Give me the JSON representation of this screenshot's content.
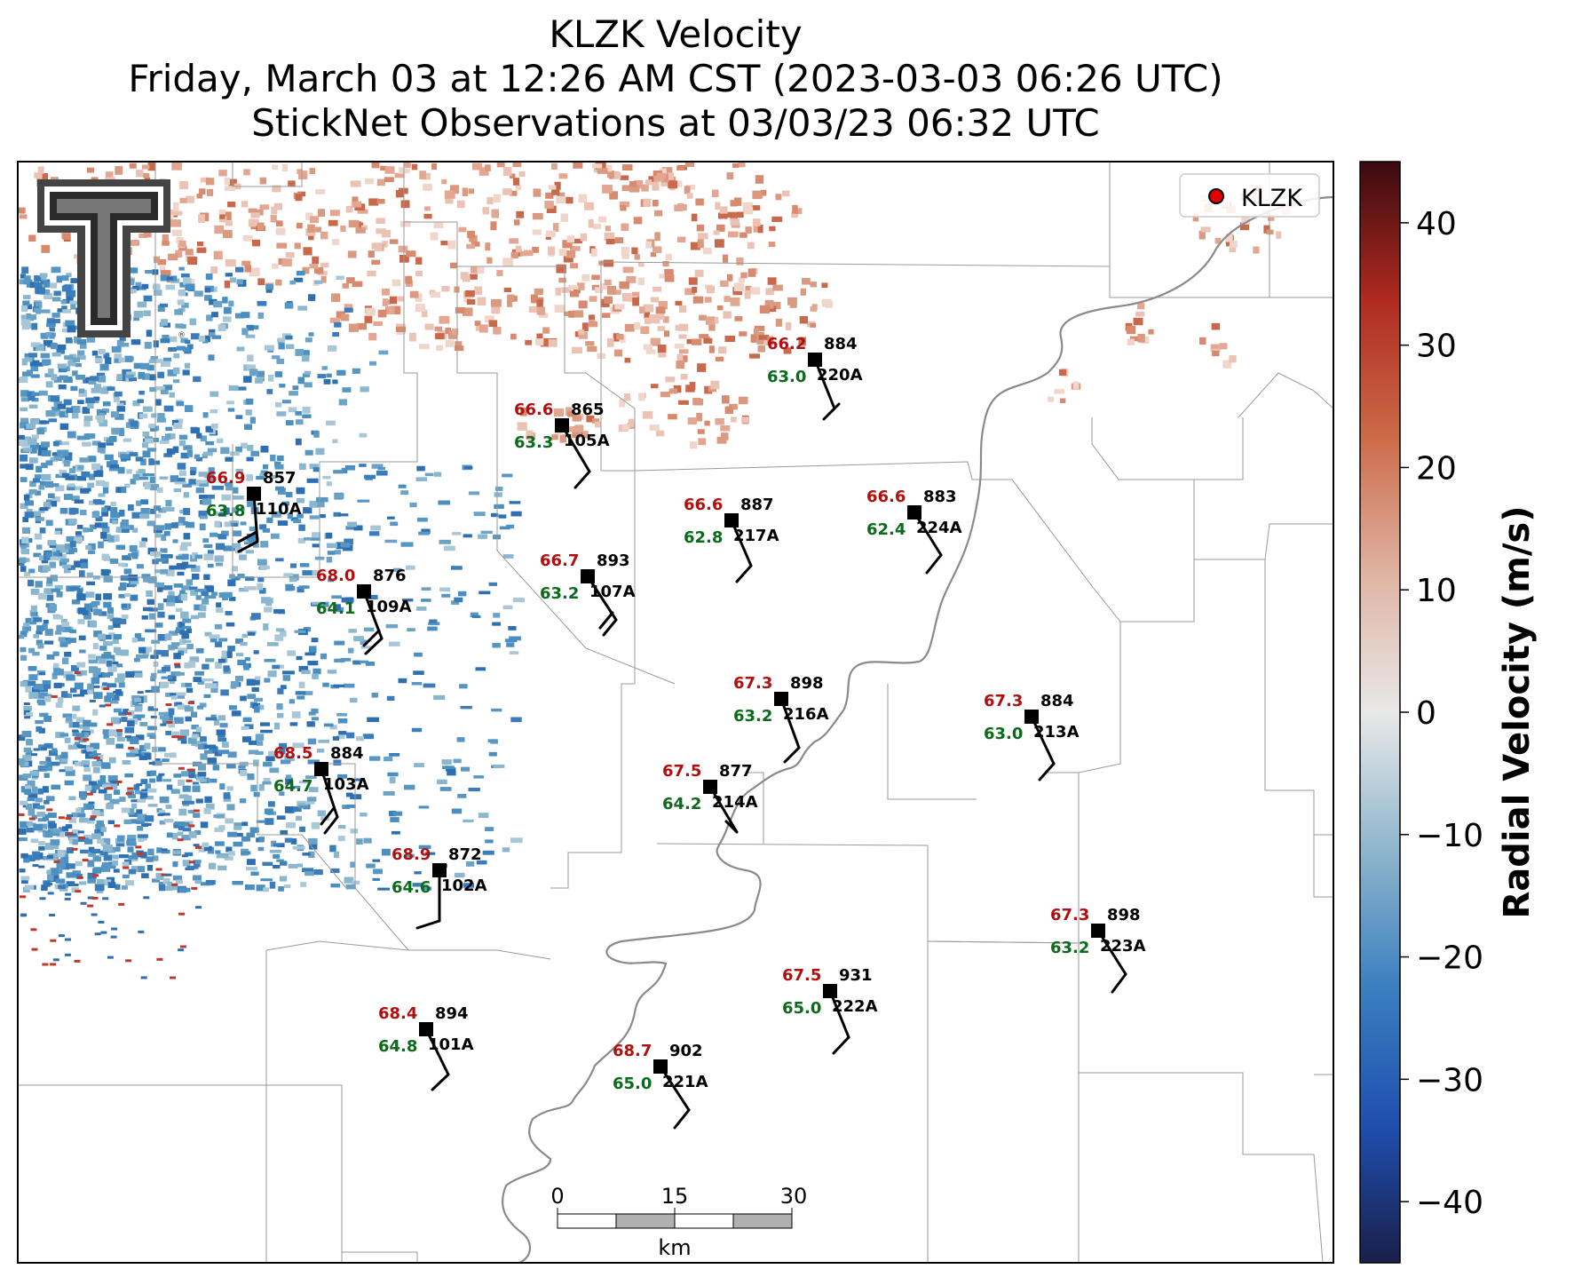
{
  "title": {
    "line1": "KLZK Velocity",
    "line2": "Friday, March 03 at 12:26 AM CST (2023-03-03 06:26 UTC)",
    "line3": "StickNet Observations at 03/03/23 06:32 UTC"
  },
  "legend": {
    "label": "KLZK",
    "marker_color": "#e00000"
  },
  "logo": {
    "name": "Texas Tech Double T",
    "trademark": "®"
  },
  "colorbar": {
    "label": "Radial Velocity (m/s)",
    "ticks": [
      "40",
      "30",
      "20",
      "10",
      "0",
      "−10",
      "−20",
      "−30",
      "−40"
    ],
    "range": [
      -45,
      45
    ],
    "colors": [
      "#1a1f4a",
      "#1f4fb0",
      "#3b7fc0",
      "#8fb6cc",
      "#e8e8e8",
      "#e0b4a4",
      "#cc6a48",
      "#b02a20",
      "#3a0a10"
    ]
  },
  "scale_bar": {
    "ticks": [
      "0",
      "15",
      "30"
    ],
    "unit": "km"
  },
  "stations": [
    {
      "id": "220A",
      "temp": "66.2",
      "dew": "63.0",
      "pres": "884"
    },
    {
      "id": "105A",
      "temp": "66.6",
      "dew": "63.3",
      "pres": "865"
    },
    {
      "id": "110A",
      "temp": "66.9",
      "dew": "63.8",
      "pres": "857"
    },
    {
      "id": "217A",
      "temp": "66.6",
      "dew": "62.8",
      "pres": "887"
    },
    {
      "id": "224A",
      "temp": "66.6",
      "dew": "62.4",
      "pres": "883"
    },
    {
      "id": "107A",
      "temp": "66.7",
      "dew": "63.2",
      "pres": "893"
    },
    {
      "id": "109A",
      "temp": "68.0",
      "dew": "64.1",
      "pres": "876"
    },
    {
      "id": "216A",
      "temp": "67.3",
      "dew": "63.2",
      "pres": "898"
    },
    {
      "id": "213A",
      "temp": "67.3",
      "dew": "63.0",
      "pres": "884"
    },
    {
      "id": "103A",
      "temp": "68.5",
      "dew": "64.7",
      "pres": "884"
    },
    {
      "id": "214A",
      "temp": "67.5",
      "dew": "64.2",
      "pres": "877"
    },
    {
      "id": "102A",
      "temp": "68.9",
      "dew": "64.6",
      "pres": "872"
    },
    {
      "id": "223A",
      "temp": "67.3",
      "dew": "63.2",
      "pres": "898"
    },
    {
      "id": "222A",
      "temp": "67.5",
      "dew": "65.0",
      "pres": "931"
    },
    {
      "id": "101A",
      "temp": "68.4",
      "dew": "64.8",
      "pres": "894"
    },
    {
      "id": "221A",
      "temp": "68.7",
      "dew": "65.0",
      "pres": "902"
    }
  ]
}
